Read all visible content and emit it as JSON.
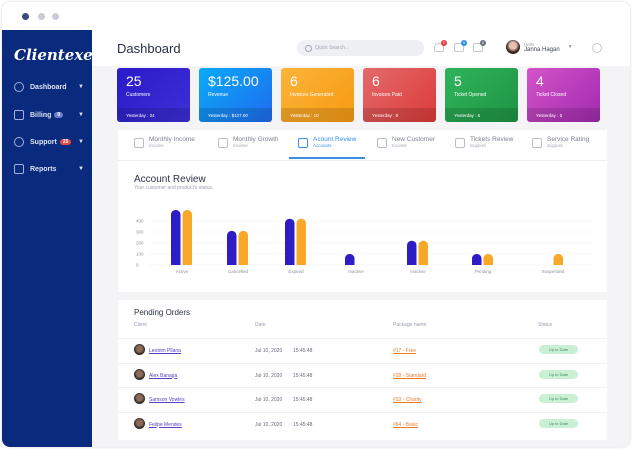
{
  "window": {
    "controls": [
      "close",
      "minimize",
      "maximize"
    ]
  },
  "sidebar": {
    "logo": "Clientexec",
    "items": [
      {
        "label": "Dashboard",
        "icon": "dashboard-icon"
      },
      {
        "label": "Billing",
        "icon": "billing-icon",
        "badge": "0",
        "badge_color": "#6b7fd0"
      },
      {
        "label": "Support",
        "icon": "support-icon",
        "badge": "25",
        "badge_color": "#e54848"
      },
      {
        "label": "Reports",
        "icon": "reports-icon"
      }
    ]
  },
  "header": {
    "title": "Dashboard",
    "search_placeholder": "Quick Search...",
    "notifications": "2",
    "messages": "5",
    "tasks": "0",
    "greeting": "Hello",
    "user_name": "Janna Hagan"
  },
  "cards": [
    {
      "value": "25",
      "label": "Customers",
      "yesterday": "Yesterday : 34",
      "colors": [
        "#2a1ac8",
        "#3e2fd6"
      ]
    },
    {
      "value": "$125.00",
      "label": "Revenue",
      "yesterday": "Yesterday : $127.00",
      "colors": [
        "#0aaaf5",
        "#1f6cf0"
      ]
    },
    {
      "value": "6",
      "label": "Invoices Generated",
      "yesterday": "Yesterday : 10",
      "colors": [
        "#fbb43a",
        "#f79a12"
      ]
    },
    {
      "value": "6",
      "label": "Invoices Paid",
      "yesterday": "Yesterday : 8",
      "colors": [
        "#e46a6a",
        "#dc3a3a"
      ]
    },
    {
      "value": "5",
      "label": "Ticket Opened",
      "yesterday": "Yesterday : 6",
      "colors": [
        "#2fb45a",
        "#1e9444"
      ]
    },
    {
      "value": "4",
      "label": "Ticket Closed",
      "yesterday": "Yesterday : 5",
      "colors": [
        "#d454c8",
        "#a02ab0"
      ]
    }
  ],
  "tabs": [
    {
      "label": "Monthly Income",
      "sub": "Income"
    },
    {
      "label": "Monthly Growth",
      "sub": "Income"
    },
    {
      "label": "Acount Review",
      "sub": "Accounts",
      "active": true
    },
    {
      "label": "New Customer",
      "sub": "Income"
    },
    {
      "label": "Tickets Review",
      "sub": "Support"
    },
    {
      "label": "Service Rating",
      "sub": "Support"
    }
  ],
  "chart_data": {
    "type": "bar",
    "title": "Account Review",
    "subtitle": "Your customer and product's status.",
    "categories": [
      "Active",
      "Cancelled",
      "Expired",
      "Inactive",
      "Inactive",
      "Pending",
      "Suspended"
    ],
    "series": [
      {
        "values": [
          500,
          310,
          420,
          100,
          220,
          100,
          0
        ],
        "color": "#2e1cc4"
      },
      {
        "values": [
          500,
          310,
          420,
          0,
          220,
          100,
          100
        ],
        "color": "#f8a828"
      }
    ],
    "yticks": [
      0,
      100,
      200,
      300,
      400
    ],
    "ylim": [
      0,
      500
    ],
    "grid": true
  },
  "orders": {
    "title": "Pending Orders",
    "columns": [
      "Client",
      "Date",
      "Package name",
      "Status"
    ],
    "rows": [
      {
        "client": "Leotrim Pllana",
        "date": "Jul 10, 2020",
        "time": "15:45:48",
        "package": "#17  -  Free",
        "status": "Up to Date"
      },
      {
        "client": "Alex Banaga",
        "date": "Jul 10, 2020",
        "time": "15:45:48",
        "package": "#28 - Standard",
        "status": "Up to Date"
      },
      {
        "client": "Samson Vowles",
        "date": "Jul 10, 2020",
        "time": "15:45:48",
        "package": "#33 - Charity",
        "status": "Up to Date"
      },
      {
        "client": "Felipe Mendes",
        "date": "Jul 10, 2020",
        "time": "15:45:48",
        "package": "#54 - Basic",
        "status": "Up to Date"
      }
    ]
  }
}
